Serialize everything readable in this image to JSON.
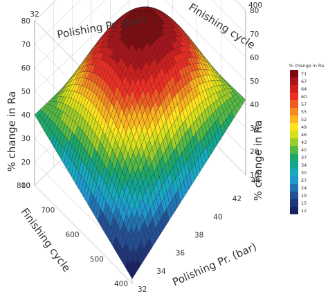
{
  "chart_data": {
    "type": "surface",
    "title": "",
    "axes": {
      "polishing_pressure": {
        "label": "Polishing Pr. (bar)",
        "range": [
          32,
          44
        ],
        "ticks": [
          "32",
          "34",
          "36",
          "38",
          "40",
          "42",
          "44"
        ]
      },
      "finishing_cycle": {
        "label": "Finishing cycle",
        "range": [
          400,
          800
        ],
        "ticks": [
          "400",
          "500",
          "600",
          "700",
          "800"
        ]
      },
      "response": {
        "label": "% change in Ra",
        "range": [
          10,
          80
        ],
        "ticks": [
          "10",
          "20",
          "30",
          "40",
          "50",
          "60",
          "70",
          "80"
        ]
      }
    },
    "surface_corners": [
      {
        "polishing_pressure": 32,
        "finishing_cycle": 400,
        "value": 12
      },
      {
        "polishing_pressure": 32,
        "finishing_cycle": 800,
        "value": 40
      },
      {
        "polishing_pressure": 44,
        "finishing_cycle": 400,
        "value": 42
      },
      {
        "polishing_pressure": 44,
        "finishing_cycle": 800,
        "value": 40
      }
    ],
    "surface_peak": {
      "polishing_pressure": 39.5,
      "finishing_cycle": 610,
      "value": 73
    },
    "legend": {
      "title": "% change in Ra",
      "placement": "right",
      "levels": [
        {
          "label": "71",
          "color": "#7d0c10"
        },
        {
          "label": "67",
          "color": "#a8141b"
        },
        {
          "label": "64",
          "color": "#cf1f1f"
        },
        {
          "label": "60",
          "color": "#ee2e24"
        },
        {
          "label": "57",
          "color": "#f25a23"
        },
        {
          "label": "55",
          "color": "#f68a22"
        },
        {
          "label": "52",
          "color": "#fbb51f"
        },
        {
          "label": "49",
          "color": "#fde21d"
        },
        {
          "label": "46",
          "color": "#d6e11b"
        },
        {
          "label": "43",
          "color": "#9dcd2a"
        },
        {
          "label": "40",
          "color": "#54b947"
        },
        {
          "label": "37",
          "color": "#1ea86a"
        },
        {
          "label": "34",
          "color": "#12a594"
        },
        {
          "label": "30",
          "color": "#16a9bf"
        },
        {
          "label": "27",
          "color": "#1f98d0"
        },
        {
          "label": "24",
          "color": "#2373b3"
        },
        {
          "label": "19",
          "color": "#244f95"
        },
        {
          "label": "15",
          "color": "#20357a"
        },
        {
          "label": "12",
          "color": "#1a2262"
        }
      ]
    }
  }
}
